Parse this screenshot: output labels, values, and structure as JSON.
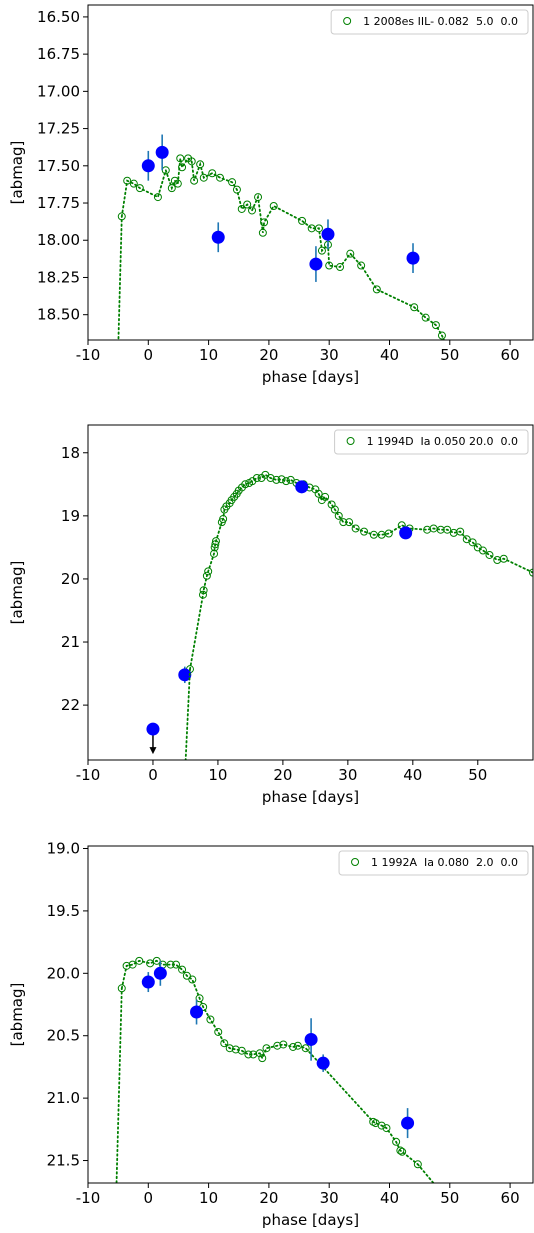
{
  "chart_data": [
    {
      "type": "scatter",
      "xlabel": "phase [days]",
      "ylabel": "[abmag]",
      "xlim": [
        -10,
        63.8
      ],
      "xticks": [
        -10,
        0,
        10,
        20,
        30,
        40,
        50,
        60
      ],
      "ylim": [
        16.42,
        18.67
      ],
      "y_inverted": true,
      "yticks": [
        {
          "value": 16.5,
          "label": "16.50"
        },
        16.75,
        {
          "value": 17.0,
          "label": "17.00"
        },
        17.25,
        {
          "value": 17.5,
          "label": "17.50"
        },
        17.75,
        {
          "value": 18.0,
          "label": "18.00"
        },
        18.25,
        {
          "value": 18.5,
          "label": "18.50"
        }
      ],
      "legend": "upper right",
      "series": [
        {
          "name": "1 2008es IIL- 0.082  5.0  0.0",
          "color": "#008000",
          "marker": "open-circle",
          "line": "dotted",
          "x": [
            -4.4,
            -3.5,
            -2.4,
            -1.4,
            1.6,
            2.9,
            3.9,
            4.4,
            4.9,
            5.3,
            5.6,
            6.6,
            7.2,
            7.6,
            8.6,
            9.2,
            10.6,
            11.9,
            13.9,
            14.7,
            15.5,
            16.4,
            17.2,
            18.2,
            19.0,
            19.2,
            20.8,
            25.5,
            27.1,
            28.3,
            28.8,
            29.8,
            30.0,
            31.8,
            33.5,
            35.3,
            37.9,
            44.1,
            46.0,
            47.7,
            48.7
          ],
          "values": [
            17.84,
            17.6,
            17.62,
            17.65,
            17.71,
            17.53,
            17.65,
            17.6,
            17.62,
            17.45,
            17.51,
            17.45,
            17.47,
            17.6,
            17.49,
            17.58,
            17.55,
            17.58,
            17.61,
            17.66,
            17.79,
            17.76,
            17.8,
            17.71,
            17.95,
            17.88,
            17.77,
            17.87,
            17.92,
            17.92,
            18.07,
            18.03,
            18.17,
            18.18,
            18.09,
            18.17,
            18.33,
            18.45,
            18.52,
            18.57,
            18.64
          ]
        },
        {
          "color": "#0000ff",
          "marker": "filled-circle",
          "error_color": "#1f77b4",
          "x": [
            0.0,
            2.3,
            11.6,
            27.8,
            29.8,
            43.9
          ],
          "values": [
            17.5,
            17.41,
            17.98,
            18.16,
            17.96,
            18.12
          ],
          "errors": [
            0.1,
            0.12,
            0.1,
            0.12,
            0.1,
            0.1
          ],
          "upper_limits": [
            false,
            false,
            false,
            false,
            false,
            false
          ]
        },
        {
          "color": "#008000",
          "marker": "none",
          "line": "dotted",
          "x": [
            -5.0,
            -4.4
          ],
          "values": [
            18.75,
            17.84
          ]
        },
        {
          "color": "#008000",
          "marker": "none",
          "line": "dotted",
          "x": [
            48.7,
            49.6
          ],
          "values": [
            18.64,
            18.72
          ]
        }
      ]
    },
    {
      "type": "scatter",
      "xlabel": "phase [days]",
      "ylabel": "[abmag]",
      "xlim": [
        -10,
        58.5
      ],
      "xticks": [
        -10,
        0,
        10,
        20,
        30,
        40,
        50
      ],
      "ylim": [
        17.56,
        22.87
      ],
      "y_inverted": true,
      "yticks": [
        18,
        19,
        20,
        21,
        22
      ],
      "legend": "upper right",
      "series": [
        {
          "name": "1 1994D  Ia 0.050 20.0  0.0",
          "color": "#008000",
          "marker": "open-circle",
          "line": "dotted",
          "x": [
            5.7,
            7.7,
            7.8,
            8.3,
            8.5,
            9.4,
            9.5,
            9.6,
            9.7,
            10.6,
            10.8,
            11.0,
            11.3,
            11.8,
            12.1,
            12.5,
            12.9,
            13.2,
            13.7,
            14.2,
            14.8,
            15.3,
            16.0,
            16.7,
            17.3,
            18.1,
            19.0,
            19.8,
            20.5,
            21.2,
            22.1,
            23.2,
            24.1,
            25.0,
            25.5,
            26.0,
            26.5,
            27.5,
            28.0,
            28.6,
            29.3,
            30.2,
            31.2,
            32.5,
            34.0,
            35.2,
            36.3,
            38.3,
            39.5,
            42.2,
            43.2,
            44.3,
            45.3,
            46.3,
            47.3,
            48.3,
            49.2,
            50.0,
            50.8,
            51.8,
            53.0,
            54.0,
            58.5
          ],
          "values": [
            21.43,
            20.25,
            20.18,
            19.95,
            19.88,
            19.6,
            19.5,
            19.45,
            19.4,
            19.1,
            19.05,
            18.9,
            18.85,
            18.8,
            18.75,
            18.7,
            18.65,
            18.6,
            18.55,
            18.5,
            18.48,
            18.45,
            18.4,
            18.4,
            18.35,
            18.4,
            18.43,
            18.42,
            18.45,
            18.43,
            18.48,
            18.5,
            18.55,
            18.58,
            18.65,
            18.75,
            18.7,
            18.82,
            18.9,
            19.0,
            19.1,
            19.1,
            19.2,
            19.25,
            19.3,
            19.3,
            19.28,
            19.15,
            19.2,
            19.22,
            19.2,
            19.22,
            19.22,
            19.27,
            19.25,
            19.37,
            19.42,
            19.5,
            19.55,
            19.62,
            19.7,
            19.68,
            19.9
          ]
        },
        {
          "color": "#0000ff",
          "marker": "filled-circle",
          "error_color": "#1f77b4",
          "x": [
            0.0,
            4.9,
            22.9,
            38.9
          ],
          "values": [
            22.38,
            21.52,
            18.54,
            19.27
          ],
          "errors": [
            null,
            0.13,
            0.03,
            0.03
          ],
          "upper_limits": [
            true,
            false,
            false,
            false
          ]
        },
        {
          "color": "#008000",
          "marker": "none",
          "line": "dotted",
          "x": [
            5.0,
            5.7
          ],
          "values": [
            22.95,
            21.43
          ]
        }
      ]
    },
    {
      "type": "scatter",
      "xlabel": "phase [days]",
      "ylabel": "[abmag]",
      "xlim": [
        -10,
        63.8
      ],
      "xticks": [
        -10,
        0,
        10,
        20,
        30,
        40,
        50,
        60
      ],
      "ylim": [
        18.98,
        21.68
      ],
      "y_inverted": true,
      "yticks": [
        {
          "value": 19.0,
          "label": "19.0"
        },
        19.5,
        {
          "value": 20.0,
          "label": "20.0"
        },
        20.5,
        {
          "value": 21.0,
          "label": "21.0"
        },
        21.5
      ],
      "legend": "upper right",
      "series": [
        {
          "name": "1 1992A  Ia 0.080  2.0  0.0",
          "color": "#008000",
          "marker": "open-circle",
          "line": "dotted",
          "x": [
            -4.4,
            -3.6,
            -2.6,
            -1.5,
            0.3,
            1.4,
            2.4,
            3.7,
            4.6,
            5.6,
            6.4,
            7.3,
            8.5,
            9.1,
            10.3,
            11.6,
            12.6,
            13.5,
            14.5,
            15.5,
            16.6,
            17.4,
            18.5,
            18.9,
            19.6,
            21.4,
            22.4,
            24.0,
            24.8,
            26.1,
            37.3,
            37.7,
            38.7,
            39.5,
            41.1,
            41.8,
            42.1,
            44.7
          ],
          "values": [
            20.12,
            19.94,
            19.93,
            19.9,
            19.92,
            19.9,
            19.93,
            19.93,
            19.93,
            19.97,
            20.02,
            20.05,
            20.2,
            20.27,
            20.37,
            20.47,
            20.56,
            20.6,
            20.61,
            20.62,
            20.65,
            20.65,
            20.64,
            20.68,
            20.6,
            20.58,
            20.57,
            20.59,
            20.58,
            20.6,
            21.19,
            21.2,
            21.22,
            21.24,
            21.35,
            21.42,
            21.43,
            21.53
          ]
        },
        {
          "color": "#0000ff",
          "marker": "filled-circle",
          "error_color": "#1f77b4",
          "x": [
            0.0,
            2.0,
            8.0,
            27.0,
            29.0,
            43.0
          ],
          "values": [
            20.07,
            20.0,
            20.31,
            20.53,
            20.72,
            21.2
          ],
          "errors": [
            0.08,
            0.1,
            0.1,
            0.17,
            0.07,
            0.12
          ],
          "upper_limits": [
            false,
            false,
            false,
            false,
            false,
            false
          ]
        },
        {
          "color": "#008000",
          "marker": "none",
          "line": "dotted",
          "x": [
            -5.3,
            -4.4
          ],
          "values": [
            21.75,
            20.12
          ]
        },
        {
          "color": "#008000",
          "marker": "none",
          "line": "dotted",
          "x": [
            44.7,
            48.5
          ],
          "values": [
            21.53,
            21.75
          ]
        }
      ]
    }
  ]
}
